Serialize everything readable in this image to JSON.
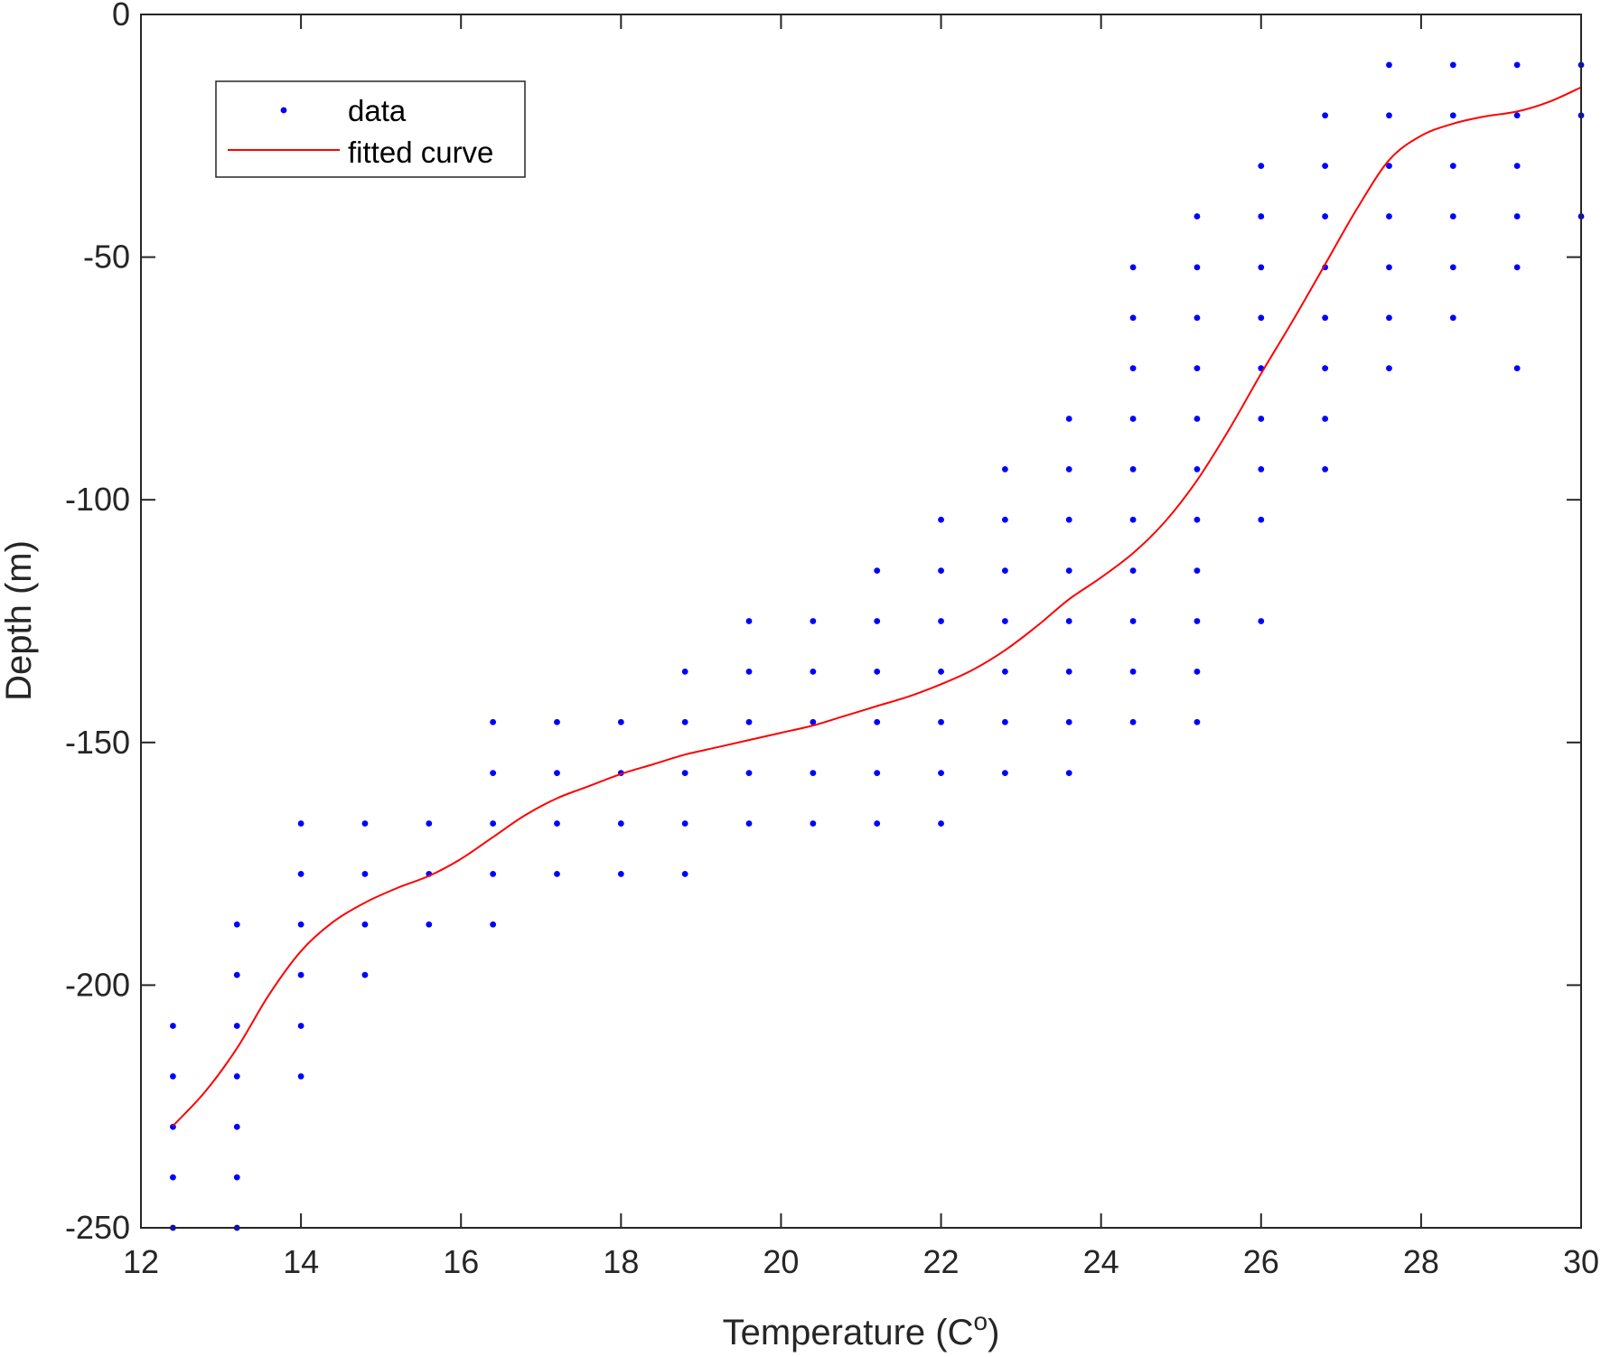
{
  "chart_data": {
    "type": "scatter",
    "title": "",
    "xlabel": "Temperature (C",
    "xlabel_sup": "o",
    "xlabel_close": ")",
    "ylabel": "Depth (m)",
    "xlim": [
      12,
      30
    ],
    "ylim": [
      -250,
      0
    ],
    "xticks": [
      12,
      14,
      16,
      18,
      20,
      22,
      24,
      26,
      28,
      30
    ],
    "yticks": [
      0,
      -50,
      -100,
      -150,
      -200,
      -250
    ],
    "xtick_labels": [
      "12",
      "14",
      "16",
      "18",
      "20",
      "22",
      "24",
      "26",
      "28",
      "30"
    ],
    "ytick_labels": [
      "0",
      "-50",
      "-100",
      "-150",
      "-200",
      "-250"
    ],
    "grid": false,
    "legend_position": "top-left",
    "colors": {
      "data": "#0000ff",
      "curve": "#ff0000",
      "axes": "#262626"
    },
    "series": [
      {
        "name": "data",
        "kind": "points",
        "columns": [
          {
            "x": 12.4,
            "y": [
              -208.4,
              -218.8,
              -229.2,
              -239.6,
              -250.0
            ]
          },
          {
            "x": 13.2,
            "y": [
              -187.5,
              -197.9,
              -208.4,
              -218.8,
              -229.2,
              -239.6,
              -250.0
            ]
          },
          {
            "x": 14.0,
            "y": [
              -166.7,
              -177.1,
              -187.5,
              -197.9,
              -208.4,
              -218.8
            ]
          },
          {
            "x": 14.8,
            "y": [
              -166.7,
              -177.1,
              -187.5,
              -197.9
            ]
          },
          {
            "x": 15.6,
            "y": [
              -166.7,
              -177.1,
              -187.5
            ]
          },
          {
            "x": 16.4,
            "y": [
              -145.8,
              -156.3,
              -166.7,
              -177.1,
              -187.5
            ]
          },
          {
            "x": 17.2,
            "y": [
              -145.8,
              -156.3,
              -166.7,
              -177.1
            ]
          },
          {
            "x": 18.0,
            "y": [
              -145.8,
              -156.3,
              -166.7,
              -177.1
            ]
          },
          {
            "x": 18.8,
            "y": [
              -135.4,
              -145.8,
              -156.3,
              -166.7,
              -177.1
            ]
          },
          {
            "x": 19.6,
            "y": [
              -125.0,
              -135.4,
              -145.8,
              -156.3,
              -166.7
            ]
          },
          {
            "x": 20.4,
            "y": [
              -125.0,
              -135.4,
              -145.8,
              -156.3,
              -166.7
            ]
          },
          {
            "x": 21.2,
            "y": [
              -114.6,
              -125.0,
              -135.4,
              -145.8,
              -156.3,
              -166.7
            ]
          },
          {
            "x": 22.0,
            "y": [
              -104.1,
              -114.6,
              -125.0,
              -135.4,
              -145.8,
              -156.3,
              -166.7
            ]
          },
          {
            "x": 22.8,
            "y": [
              -93.7,
              -104.1,
              -114.6,
              -125.0,
              -135.4,
              -145.8,
              -156.3
            ]
          },
          {
            "x": 23.6,
            "y": [
              -83.3,
              -93.7,
              -104.1,
              -114.6,
              -125.0,
              -135.4,
              -145.8,
              -156.3
            ]
          },
          {
            "x": 24.4,
            "y": [
              -52.1,
              -62.5,
              -72.9,
              -83.3,
              -93.7,
              -104.1,
              -114.6,
              -125.0,
              -135.4,
              -145.8
            ]
          },
          {
            "x": 25.2,
            "y": [
              -41.6,
              -52.1,
              -62.5,
              -72.9,
              -83.3,
              -93.7,
              -104.1,
              -114.6,
              -125.0,
              -135.4,
              -145.8
            ]
          },
          {
            "x": 26.0,
            "y": [
              -31.2,
              -41.6,
              -52.1,
              -62.5,
              -72.9,
              -83.3,
              -93.7,
              -104.1,
              -125.0
            ]
          },
          {
            "x": 26.8,
            "y": [
              -20.8,
              -31.2,
              -41.6,
              -52.1,
              -62.5,
              -72.9,
              -83.3,
              -93.7
            ]
          },
          {
            "x": 27.6,
            "y": [
              -10.4,
              -20.8,
              -31.2,
              -41.6,
              -52.1,
              -62.5,
              -72.9
            ]
          },
          {
            "x": 28.4,
            "y": [
              -10.4,
              -20.8,
              -31.2,
              -41.6,
              -52.1,
              -62.5
            ]
          },
          {
            "x": 29.2,
            "y": [
              -10.4,
              -20.8,
              -31.2,
              -41.6,
              -52.1,
              -72.9
            ]
          },
          {
            "x": 30.0,
            "y": [
              -10.4,
              -20.8,
              -41.6
            ]
          }
        ]
      },
      {
        "name": "fitted curve",
        "kind": "line",
        "points": [
          [
            12.4,
            -229.0
          ],
          [
            12.8,
            -222.0
          ],
          [
            13.2,
            -213.0
          ],
          [
            13.6,
            -202.0
          ],
          [
            14.0,
            -193.0
          ],
          [
            14.4,
            -187.0
          ],
          [
            14.8,
            -183.0
          ],
          [
            15.2,
            -180.0
          ],
          [
            15.6,
            -177.5
          ],
          [
            16.0,
            -174.0
          ],
          [
            16.4,
            -169.5
          ],
          [
            16.8,
            -165.0
          ],
          [
            17.2,
            -161.5
          ],
          [
            17.6,
            -159.0
          ],
          [
            18.0,
            -156.5
          ],
          [
            18.4,
            -154.5
          ],
          [
            18.8,
            -152.5
          ],
          [
            19.2,
            -151.0
          ],
          [
            19.6,
            -149.5
          ],
          [
            20.0,
            -148.0
          ],
          [
            20.4,
            -146.5
          ],
          [
            20.8,
            -144.5
          ],
          [
            21.2,
            -142.5
          ],
          [
            21.6,
            -140.5
          ],
          [
            22.0,
            -138.0
          ],
          [
            22.4,
            -135.0
          ],
          [
            22.8,
            -131.0
          ],
          [
            23.2,
            -126.0
          ],
          [
            23.6,
            -120.5
          ],
          [
            24.0,
            -116.0
          ],
          [
            24.4,
            -111.0
          ],
          [
            24.8,
            -104.5
          ],
          [
            25.2,
            -96.0
          ],
          [
            25.6,
            -85.5
          ],
          [
            26.0,
            -74.0
          ],
          [
            26.4,
            -63.0
          ],
          [
            26.8,
            -51.5
          ],
          [
            27.2,
            -40.0
          ],
          [
            27.6,
            -30.0
          ],
          [
            28.0,
            -25.0
          ],
          [
            28.4,
            -22.5
          ],
          [
            28.8,
            -21.0
          ],
          [
            29.2,
            -20.0
          ],
          [
            29.6,
            -18.0
          ],
          [
            30.0,
            -15.0
          ]
        ]
      }
    ]
  }
}
